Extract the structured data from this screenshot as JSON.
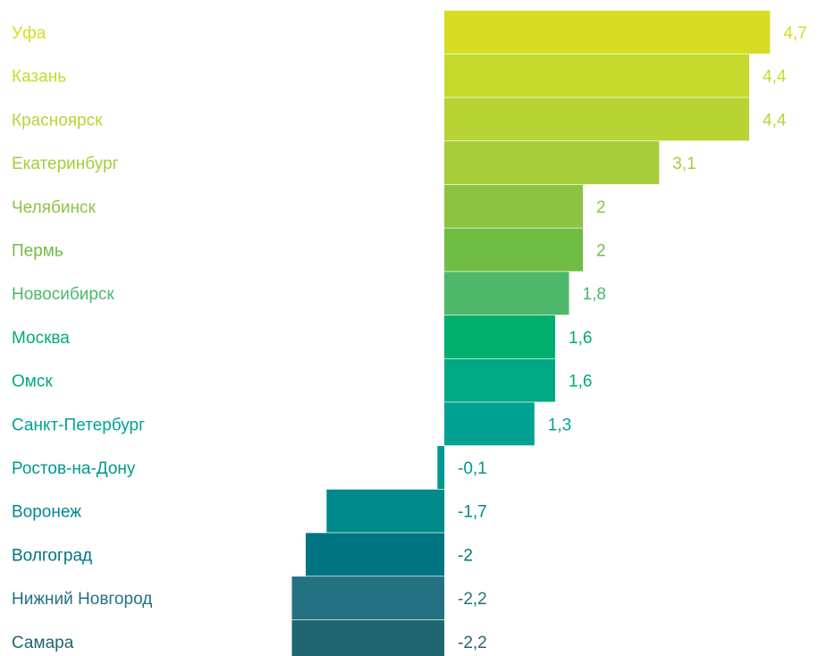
{
  "chart_data": {
    "type": "bar",
    "orientation": "horizontal",
    "categories": [
      "Уфа",
      "Казань",
      "Красноярск",
      "Екатеринбург",
      "Челябинск",
      "Пермь",
      "Новосибирск",
      "Москва",
      "Омск",
      "Санкт-Петербург",
      "Ростов-на-Дону",
      "Воронеж",
      "Волгоград",
      "Нижний Новгород",
      "Самара"
    ],
    "values": [
      4.7,
      4.4,
      4.4,
      3.1,
      2,
      2,
      1.8,
      1.6,
      1.6,
      1.3,
      -0.1,
      -1.7,
      -2,
      -2.2,
      -2.2
    ],
    "value_labels": [
      "4,7",
      "4,4",
      "4,4",
      "3,1",
      "2",
      "2",
      "1,8",
      "1,6",
      "1,6",
      "1,3",
      "-0,1",
      "-1,7",
      "-2",
      "-2,2",
      "-2,2"
    ],
    "colors": [
      "#d5de22",
      "#c6da2e",
      "#b8d434",
      "#a6cd3a",
      "#8cc442",
      "#6fbd45",
      "#4db86a",
      "#00ae6e",
      "#00a984",
      "#00a294",
      "#00988f",
      "#00898a",
      "#007480",
      "#247181",
      "#1f6670"
    ],
    "title": "",
    "xlabel": "",
    "ylabel": "",
    "xlim": [
      -2.2,
      4.7
    ],
    "grid": false,
    "legend": "none"
  }
}
